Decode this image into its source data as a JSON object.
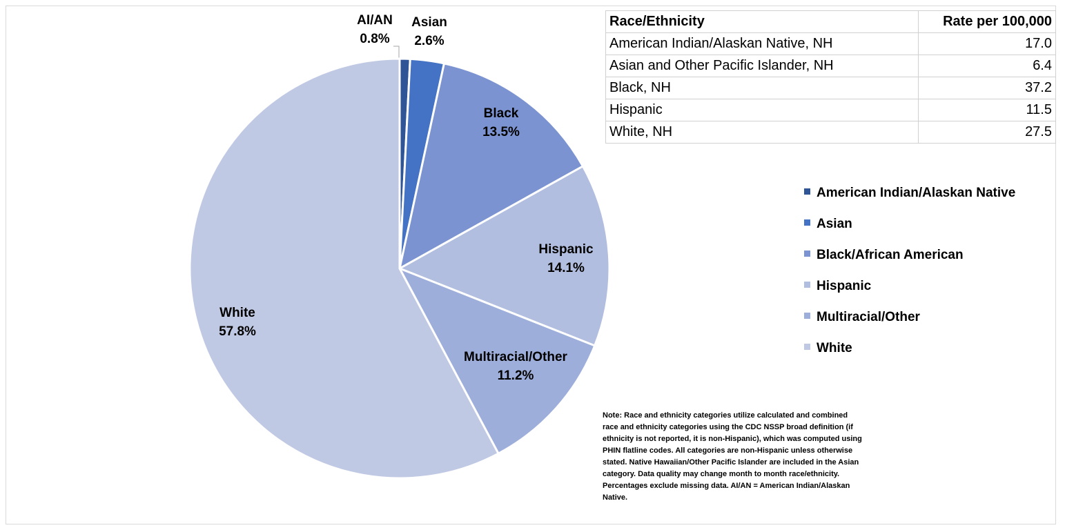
{
  "chart_data": {
    "type": "pie",
    "categories": [
      "American Indian/Alaskan Native",
      "Asian",
      "Black/African American",
      "Hispanic",
      "Multiracial/Other",
      "White"
    ],
    "label_names": [
      "AI/AN",
      "Asian",
      "Black",
      "Hispanic",
      "Multiracial/Other",
      "White"
    ],
    "values": [
      0.8,
      2.6,
      13.5,
      14.1,
      11.2,
      57.8
    ],
    "value_labels": [
      "0.8%",
      "2.6%",
      "13.5%",
      "14.1%",
      "11.2%",
      "57.8%"
    ],
    "colors": [
      "#2f5597",
      "#4472c4",
      "#7b93d0",
      "#b2bedf",
      "#9eaedb",
      "#c0c9e4"
    ],
    "legend": "right"
  },
  "table": {
    "header": [
      "Race/Ethnicity",
      "Rate per 100,000"
    ],
    "rows": [
      [
        "American Indian/Alaskan Native, NH",
        "17.0"
      ],
      [
        "Asian and Other Pacific Islander, NH",
        "6.4"
      ],
      [
        "Black, NH",
        "37.2"
      ],
      [
        "Hispanic",
        "11.5"
      ],
      [
        "White, NH",
        "27.5"
      ]
    ]
  },
  "note": "Note: Race and ethnicity categories utilize calculated and combined race and ethnicity categories using the CDC NSSP broad definition (if ethnicity is not reported, it is non-Hispanic), which was computed using PHIN flatline codes. All categories are non-Hispanic unless otherwise stated. Native Hawaiian/Other Pacific Islander are included in the Asian category. Data quality may change month to month race/ethnicity. Percentages exclude missing data. AI/AN = American Indian/Alaskan Native."
}
